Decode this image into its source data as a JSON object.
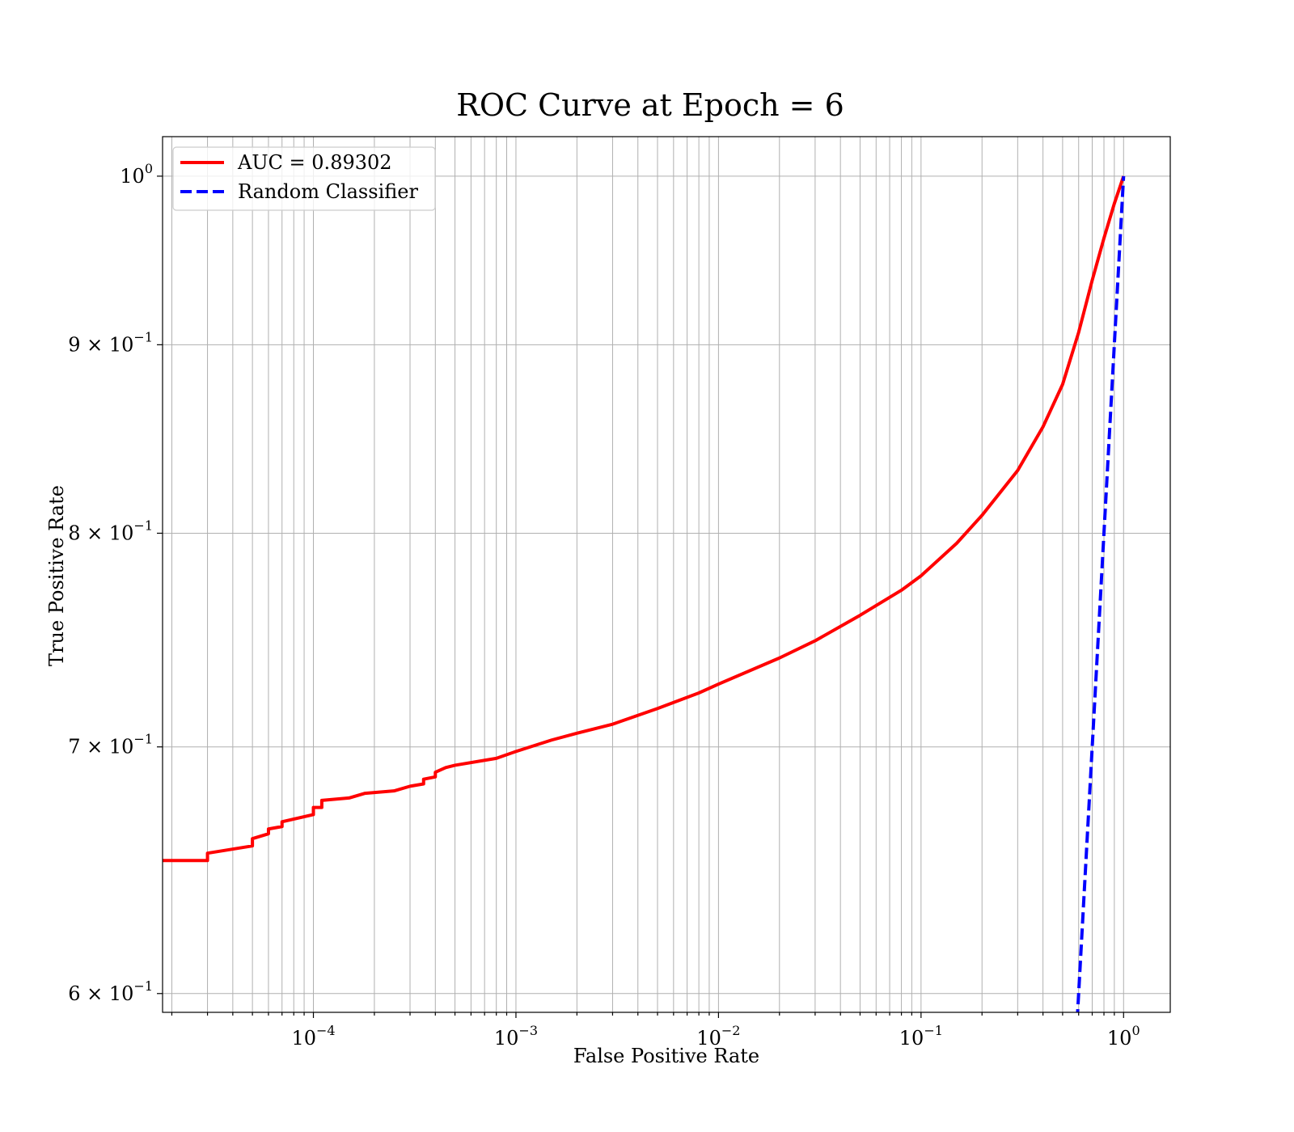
{
  "chart_data": {
    "type": "line",
    "title": "ROC Curve at Epoch = 6",
    "xlabel": "False Positive Rate",
    "ylabel": "True Positive Rate",
    "xscale": "log",
    "yscale": "log",
    "xlim": [
      1.8e-05,
      1.7
    ],
    "ylim": [
      0.593,
      1.025
    ],
    "grid": "both",
    "legend_position": "top-left",
    "x_ticks": [
      {
        "value": 0.0001,
        "base": "10",
        "exp": "−4"
      },
      {
        "value": 0.001,
        "base": "10",
        "exp": "−3"
      },
      {
        "value": 0.01,
        "base": "10",
        "exp": "−2"
      },
      {
        "value": 0.1,
        "base": "10",
        "exp": "−1"
      },
      {
        "value": 1,
        "base": "10",
        "exp": "0"
      }
    ],
    "y_ticks": [
      {
        "value": 0.6,
        "base": "6 × 10",
        "exp": "−1"
      },
      {
        "value": 0.7,
        "base": "7 × 10",
        "exp": "−1"
      },
      {
        "value": 0.8,
        "base": "8 × 10",
        "exp": "−1"
      },
      {
        "value": 0.9,
        "base": "9 × 10",
        "exp": "−1"
      },
      {
        "value": 1.0,
        "base": "10",
        "exp": "0"
      }
    ],
    "series": [
      {
        "name": "AUC = 0.89302",
        "color": "#ff0000",
        "dash": "solid",
        "points": [
          [
            1.8e-05,
            0.652
          ],
          [
            3e-05,
            0.652
          ],
          [
            3e-05,
            0.655
          ],
          [
            5e-05,
            0.658
          ],
          [
            5e-05,
            0.661
          ],
          [
            6e-05,
            0.663
          ],
          [
            6e-05,
            0.665
          ],
          [
            7e-05,
            0.666
          ],
          [
            7e-05,
            0.668
          ],
          [
            0.0001,
            0.671
          ],
          [
            0.0001,
            0.674
          ],
          [
            0.00011,
            0.674
          ],
          [
            0.00011,
            0.677
          ],
          [
            0.00015,
            0.678
          ],
          [
            0.00018,
            0.68
          ],
          [
            0.00025,
            0.681
          ],
          [
            0.0003,
            0.683
          ],
          [
            0.00035,
            0.684
          ],
          [
            0.00035,
            0.686
          ],
          [
            0.0004,
            0.687
          ],
          [
            0.0004,
            0.689
          ],
          [
            0.00045,
            0.691
          ],
          [
            0.0005,
            0.692
          ],
          [
            0.0008,
            0.695
          ],
          [
            0.001,
            0.698
          ],
          [
            0.0015,
            0.703
          ],
          [
            0.002,
            0.706
          ],
          [
            0.003,
            0.71
          ],
          [
            0.005,
            0.717
          ],
          [
            0.008,
            0.724
          ],
          [
            0.01,
            0.728
          ],
          [
            0.02,
            0.74
          ],
          [
            0.03,
            0.748
          ],
          [
            0.05,
            0.76
          ],
          [
            0.08,
            0.772
          ],
          [
            0.1,
            0.779
          ],
          [
            0.15,
            0.795
          ],
          [
            0.2,
            0.809
          ],
          [
            0.3,
            0.832
          ],
          [
            0.4,
            0.855
          ],
          [
            0.5,
            0.878
          ],
          [
            0.6,
            0.907
          ],
          [
            0.7,
            0.937
          ],
          [
            0.8,
            0.962
          ],
          [
            0.9,
            0.983
          ],
          [
            1.0,
            1.0
          ]
        ]
      },
      {
        "name": "Random Classifier",
        "color": "#0000ff",
        "dash": "dashed",
        "points": [
          [
            0.59,
            0.59
          ],
          [
            1.0,
            1.0
          ]
        ]
      }
    ]
  }
}
